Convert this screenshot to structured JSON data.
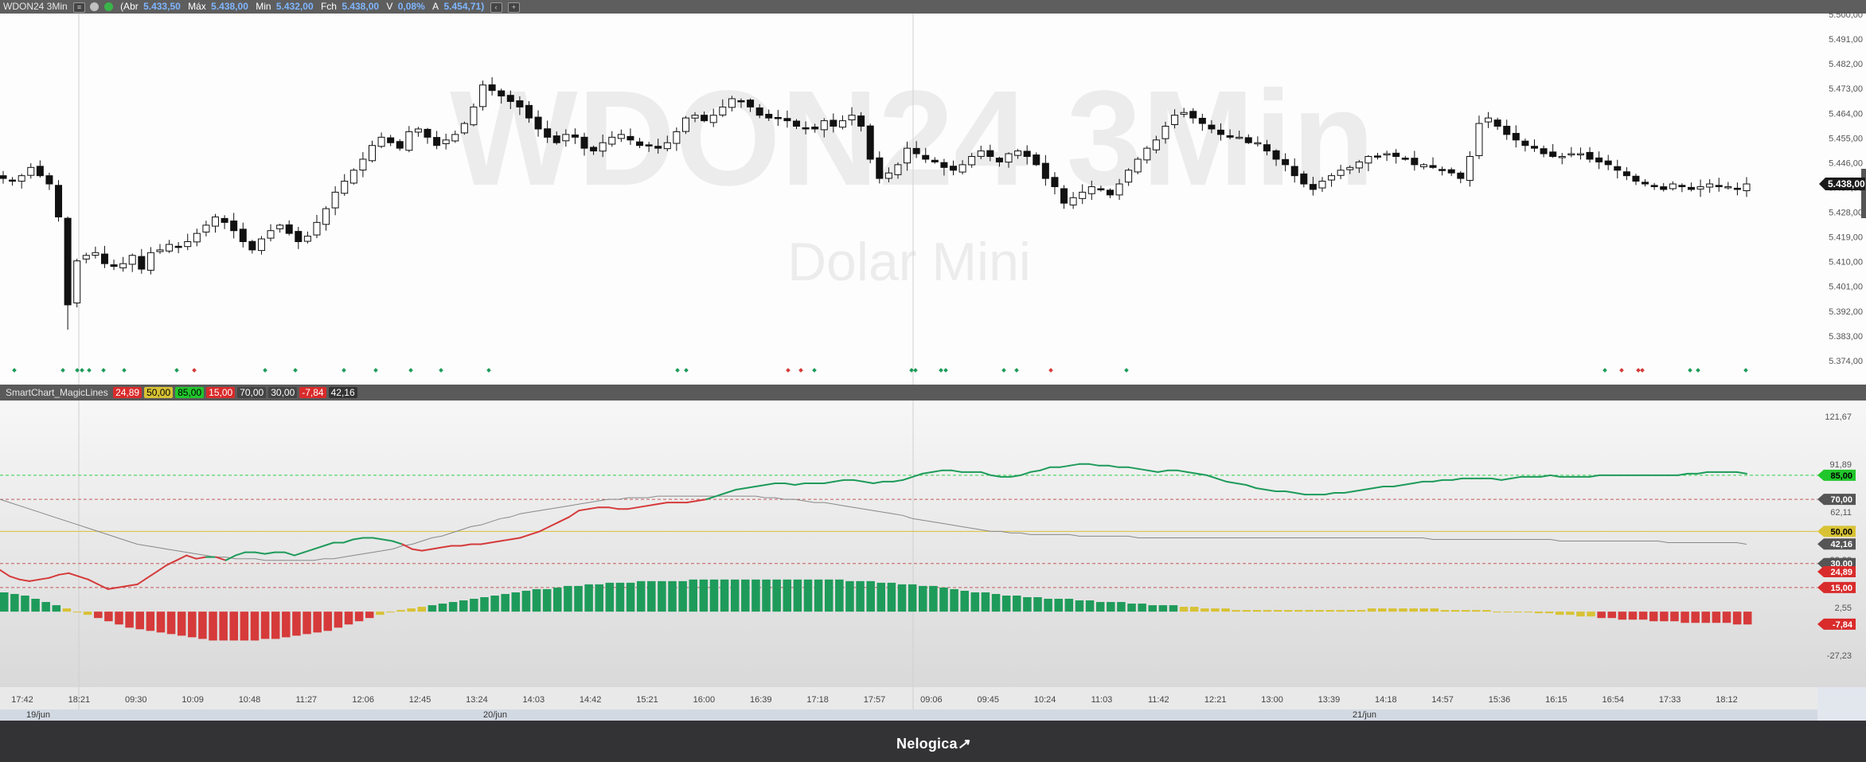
{
  "header": {
    "symbol": "WDON24 3Min",
    "abr_label": "(Abr",
    "abr": "5.433,50",
    "max_label": "Máx",
    "max": "5.438,00",
    "min_label": "Min",
    "min": "5.432,00",
    "fch_label": "Fch",
    "fch": "5.438,00",
    "var_label": "V",
    "var": "0,08%",
    "a_label": "A",
    "a": "5.454,71)"
  },
  "period_button": "3",
  "watermark": {
    "symbol": "WDON24 3Min",
    "name": "Dolar Mini"
  },
  "price_axis": {
    "ticks": [
      "5.500,00",
      "5.491,00",
      "5.482,00",
      "5.473,00",
      "5.464,00",
      "5.455,00",
      "5.446,00",
      "5.437,00",
      "5.428,00",
      "5.419,00",
      "5.410,00",
      "5.401,00",
      "5.392,00",
      "5.383,00",
      "5.374,00"
    ],
    "current": "5.438,00"
  },
  "indicator": {
    "name": "SmartChart_MagicLines",
    "badges": [
      {
        "text": "24,89",
        "bg": "#d92b2b",
        "fg": "#ffffff"
      },
      {
        "text": "50,00",
        "bg": "#d8c234",
        "fg": "#000000"
      },
      {
        "text": "85,00",
        "bg": "#21c62b",
        "fg": "#000000"
      },
      {
        "text": "15,00",
        "bg": "#d92b2b",
        "fg": "#ffffff"
      },
      {
        "text": "70,00",
        "bg": "#444444",
        "fg": "#ffffff"
      },
      {
        "text": "30,00",
        "bg": "#444444",
        "fg": "#ffffff"
      },
      {
        "text": "-7,84",
        "bg": "#d92b2b",
        "fg": "#ffffff"
      },
      {
        "text": "42,16",
        "bg": "#333333",
        "fg": "#ffffff"
      }
    ],
    "axis_ticks": [
      "121,67",
      "91,89",
      "62,11",
      "32,33",
      "2,55",
      "-27,23"
    ],
    "markers": [
      {
        "text": "85,00",
        "bg": "#21c62b",
        "fg": "#000000",
        "value": 85
      },
      {
        "text": "70,00",
        "bg": "#555555",
        "fg": "#ffffff",
        "value": 70
      },
      {
        "text": "50,00",
        "bg": "#d8c234",
        "fg": "#000000",
        "value": 50
      },
      {
        "text": "42,16",
        "bg": "#555555",
        "fg": "#ffffff",
        "value": 42.16
      },
      {
        "text": "30,00",
        "bg": "#555555",
        "fg": "#ffffff",
        "value": 30
      },
      {
        "text": "24,89",
        "bg": "#d92b2b",
        "fg": "#ffffff",
        "value": 24.89
      },
      {
        "text": "15,00",
        "bg": "#d92b2b",
        "fg": "#ffffff",
        "value": 15
      },
      {
        "text": "-7,84",
        "bg": "#d92b2b",
        "fg": "#ffffff",
        "value": -7.84
      }
    ]
  },
  "time_axis": {
    "times": [
      "17:42",
      "18:21",
      "09:30",
      "10:09",
      "10:48",
      "11:27",
      "12:06",
      "12:45",
      "13:24",
      "14:03",
      "14:42",
      "15:21",
      "16:00",
      "16:39",
      "17:18",
      "17:57",
      "09:06",
      "09:45",
      "10:24",
      "11:03",
      "11:42",
      "12:21",
      "13:00",
      "13:39",
      "14:18",
      "14:57",
      "15:36",
      "16:15",
      "16:54",
      "17:33",
      "18:12"
    ],
    "dates": [
      "19/jun",
      "20/jun",
      "21/jun"
    ]
  },
  "footer": {
    "brand": "Nelogica"
  },
  "colors": {
    "up": "#1e9b5a",
    "down": "#d63a3a",
    "neutral": "#d8c234",
    "signal": "#888888"
  },
  "chart_data": [
    {
      "type": "candlestick",
      "title": "WDON24 3Min",
      "subtitle": "Dolar Mini",
      "ylim": [
        5370,
        5500
      ],
      "close": [
        5440,
        5439,
        5441,
        5444,
        5441,
        5438,
        5426,
        5394,
        5410,
        5412,
        5413,
        5409,
        5408,
        5409,
        5412,
        5407,
        5413,
        5414,
        5416,
        5415,
        5417,
        5420,
        5423,
        5426,
        5424,
        5421,
        5417,
        5414,
        5418,
        5421,
        5423,
        5420,
        5417,
        5419,
        5424,
        5429,
        5435,
        5439,
        5443,
        5447,
        5452,
        5455,
        5453,
        5451,
        5457,
        5458,
        5455,
        5452,
        5454,
        5456,
        5460,
        5466,
        5474,
        5472,
        5470,
        5468,
        5466,
        5462,
        5458,
        5455,
        5453,
        5456,
        5455,
        5451,
        5450,
        5453,
        5455,
        5456,
        5454,
        5452,
        5452,
        5451,
        5453,
        5457,
        5462,
        5463,
        5461,
        5463,
        5466,
        5469,
        5468,
        5466,
        5463,
        5462,
        5462,
        5461,
        5459,
        5458,
        5458,
        5461,
        5459,
        5461,
        5463,
        5459,
        5447,
        5440,
        5442,
        5445,
        5451,
        5449,
        5447,
        5446,
        5444,
        5443,
        5445,
        5448,
        5450,
        5448,
        5446,
        5449,
        5450,
        5448,
        5445,
        5440,
        5437,
        5431,
        5433,
        5435,
        5437,
        5436,
        5434,
        5438,
        5443,
        5447,
        5451,
        5454,
        5459,
        5463,
        5464,
        5462,
        5460,
        5458,
        5456,
        5455,
        5455,
        5453,
        5453,
        5450,
        5447,
        5445,
        5441,
        5438,
        5436,
        5439,
        5441,
        5443,
        5444,
        5446,
        5448,
        5448,
        5449,
        5448,
        5447,
        5445,
        5445,
        5444,
        5443,
        5442,
        5440,
        5448,
        5460,
        5462,
        5459,
        5456,
        5454,
        5452,
        5451,
        5449,
        5448,
        5448,
        5449,
        5449,
        5447,
        5446,
        5445,
        5443,
        5441,
        5439,
        5438,
        5437,
        5436,
        5438,
        5437,
        5436,
        5437,
        5438,
        5437,
        5437,
        5436,
        5438
      ]
    },
    {
      "type": "line",
      "title": "SmartChart_MagicLines",
      "ylim": [
        -27.23,
        121.67
      ],
      "series": [
        {
          "values": [
            26,
            22,
            20,
            19,
            20,
            21,
            23,
            24,
            22,
            20,
            17,
            14,
            15,
            16,
            17,
            21,
            25,
            29,
            32,
            35,
            33,
            34,
            34,
            32,
            35,
            37,
            37,
            36,
            37,
            37,
            35,
            37,
            39,
            41,
            43,
            43,
            45,
            46,
            46,
            45,
            44,
            42,
            39,
            38,
            39,
            40,
            41,
            41,
            42,
            42,
            43,
            44,
            45,
            46,
            48,
            50,
            53,
            56,
            59,
            63,
            64,
            65,
            65,
            64,
            64,
            65,
            66,
            67,
            68,
            68,
            68,
            69,
            70,
            72,
            74,
            76,
            77,
            78,
            79,
            80,
            80,
            79,
            80,
            80,
            80,
            81,
            82,
            82,
            81,
            80,
            81,
            81,
            82,
            84,
            86,
            87,
            88,
            88,
            87,
            87,
            87,
            85,
            84,
            84,
            85,
            87,
            88,
            90,
            90,
            91,
            92,
            92,
            91,
            91,
            90,
            90,
            89,
            88,
            87,
            88,
            88,
            87,
            86,
            85,
            83,
            81,
            80,
            79,
            77,
            76,
            75,
            75,
            74,
            73,
            73,
            73,
            74,
            74,
            75,
            76,
            77,
            78,
            78,
            79,
            80,
            81,
            81,
            82,
            82,
            83,
            83,
            83,
            83,
            82,
            83,
            84,
            84,
            84,
            85,
            84,
            84,
            84,
            84,
            85,
            85,
            85,
            85,
            85,
            85,
            85,
            85,
            85,
            86,
            86,
            87,
            87,
            87,
            87,
            86
          ]
        },
        {
          "values": [
            70,
            68,
            66,
            64,
            62,
            60,
            58,
            56,
            54,
            52,
            50,
            48,
            46,
            44,
            42,
            41,
            40,
            39,
            38,
            37,
            36,
            35,
            34,
            34,
            33,
            33,
            33,
            32,
            32,
            32,
            32,
            32,
            32,
            33,
            33,
            34,
            35,
            36,
            37,
            38,
            39,
            41,
            42,
            44,
            46,
            47,
            49,
            51,
            53,
            54,
            56,
            58,
            59,
            61,
            62,
            63,
            64,
            65,
            66,
            67,
            68,
            69,
            70,
            70,
            71,
            71,
            71,
            72,
            72,
            72,
            72,
            72,
            72,
            72,
            72,
            72,
            72,
            72,
            71,
            71,
            70,
            70,
            69,
            68,
            68,
            67,
            66,
            65,
            64,
            63,
            62,
            61,
            60,
            58,
            57,
            56,
            55,
            54,
            53,
            52,
            51,
            50,
            50,
            49,
            49,
            48,
            48,
            48,
            48,
            48,
            47,
            47,
            47,
            47,
            47,
            47,
            46,
            46,
            46,
            46,
            46,
            46,
            46,
            46,
            46,
            46,
            46,
            46,
            46,
            46,
            46,
            46,
            46,
            46,
            46,
            46,
            46,
            46,
            46,
            46,
            46,
            46,
            46,
            46,
            46,
            46,
            45,
            45,
            45,
            45,
            45,
            45,
            45,
            45,
            45,
            45,
            45,
            45,
            45,
            44,
            44,
            44,
            44,
            44,
            44,
            44,
            44,
            44,
            44,
            44,
            43,
            43,
            43,
            43,
            43,
            43,
            43,
            43,
            42
          ]
        },
        {
          "values": [
            12,
            11,
            10,
            8,
            6,
            4,
            2,
            0,
            -2,
            -4,
            -6,
            -8,
            -10,
            -11,
            -12,
            -13,
            -14,
            -15,
            -16,
            -17,
            -18,
            -18,
            -18,
            -18,
            -18,
            -17,
            -17,
            -16,
            -15,
            -14,
            -13,
            -12,
            -10,
            -8,
            -6,
            -4,
            -2,
            0,
            1,
            2,
            3,
            4,
            5,
            6,
            7,
            8,
            9,
            10,
            11,
            12,
            13,
            14,
            14,
            15,
            16,
            16,
            17,
            17,
            18,
            18,
            18,
            19,
            19,
            19,
            19,
            19,
            20,
            20,
            20,
            20,
            20,
            20,
            20,
            20,
            20,
            20,
            20,
            20,
            20,
            20,
            20,
            19,
            19,
            19,
            18,
            18,
            17,
            17,
            16,
            16,
            15,
            14,
            13,
            12,
            12,
            11,
            10,
            10,
            9,
            9,
            8,
            8,
            8,
            7,
            7,
            6,
            6,
            6,
            5,
            5,
            4,
            4,
            4,
            3,
            3,
            2,
            2,
            2,
            1,
            1,
            1,
            1,
            1,
            1,
            1,
            1,
            1,
            1,
            1,
            1,
            1,
            2,
            2,
            2,
            2,
            2,
            2,
            2,
            1,
            1,
            1,
            1,
            1,
            0,
            0,
            0,
            0,
            -1,
            -1,
            -2,
            -2,
            -3,
            -3,
            -4,
            -4,
            -5,
            -5,
            -5,
            -6,
            -6,
            -6,
            -7,
            -7,
            -7,
            -7,
            -7,
            -8,
            -8
          ]
        }
      ],
      "hlines": [
        85,
        70,
        50,
        30,
        15
      ]
    }
  ]
}
